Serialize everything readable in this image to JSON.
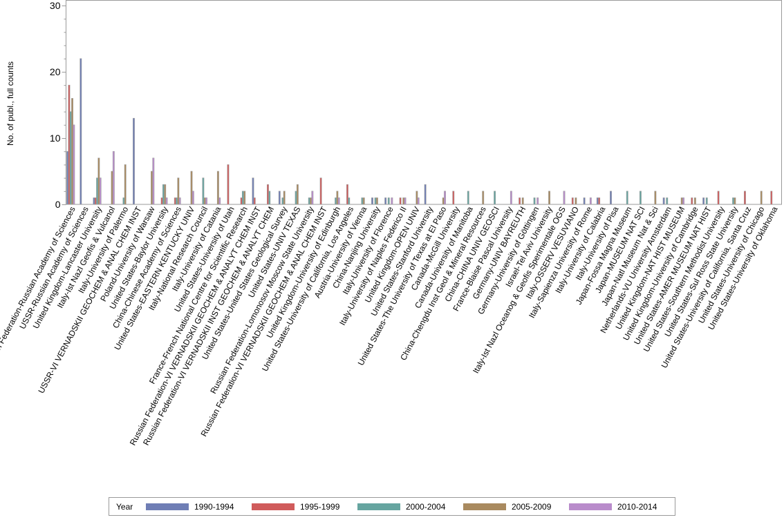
{
  "chart_data": {
    "type": "bar",
    "ylabel": "No. of publ., full counts",
    "xlabel": "",
    "ylim": [
      0,
      30
    ],
    "yticks": [
      0,
      10,
      20,
      30
    ],
    "legend_title": "Year",
    "legend_placement": "bottom",
    "series": [
      {
        "name": "1990-1994",
        "color": "#6f7eb5"
      },
      {
        "name": "1995-1999",
        "color": "#d05b5b"
      },
      {
        "name": "2000-2004",
        "color": "#66a5a0"
      },
      {
        "name": "2005-2009",
        "color": "#a98a5f"
      },
      {
        "name": "2010-2014",
        "color": "#b98ccb"
      }
    ],
    "categories": [
      "Russian Federation-Russian Academy of Sciences",
      "USSR-Russian Academy of Sciences",
      "United Kingdom-Lancaster University",
      "Italy-Ist Nazl Geofis & Vulcanol",
      "Italy-University of Palermo",
      "USSR-VI VERNADSKII GEOCHEM & ANAL CHEM INST",
      "Poland-University of Warsaw",
      "United States-Baylor University",
      "China-Chinese Academy of Sciences",
      "United States-EASTERN KENTUCKY UNIV",
      "Italy-National Research Council",
      "Italy-University of Catania",
      "United States-University of Utah",
      "France-French National Centre for Scientific Research",
      "Russian Federation-VI VERNADSKII GEOCHEM & ANALYT CHEM INST",
      "Russian Federation-VI VERNADSKII INST GEOCHEM & ANALYT CHEM",
      "United States-United States Geological Survey",
      "United States-UNIV TEXAS",
      "Russian Federation-Lomonosov Moscow State University",
      "Russian Federation-VI VERNADSKII GEOCHEM & ANAL CHEM INST",
      "United Kingdom-University of Edinburgh",
      "United States-University of California, Los Angeles",
      "Austria-University of Vienna",
      "China-Nanjing University",
      "Italy-University of Florence",
      "Italy-University of Naples Federico II",
      "United Kingdom-OPEN UNIV",
      "United States-Stanford University",
      "United States-The University of Texas at El Paso",
      "Canada-McGill University",
      "Canada-University of Manitoba",
      "China-Chengdu Inst Geol & Mineral Resources",
      "China-CHINA UNIV GEOSCI",
      "France-Blaise Pascal University",
      "Germany-UNIV BAYREUTH",
      "Germany-University of Göttingen",
      "Israel-Tel Aviv University",
      "Italy-Ist Nazl Oceanog & Geofis Sperimentale OGS",
      "Italy-OSSERV VESUVIANO",
      "Italy-Sapienza University of Rome",
      "Italy-University of Calabria",
      "Italy-University of Pisa",
      "Japan-Fossa Magna Museum",
      "Japan-MUSEUM NAT SCI",
      "Japan-Natl Museum Nat & Sci",
      "Netherlands-VU University Amsterdam",
      "United Kingdom-NAT HIST MUSEUM",
      "United Kingdom-University of Cambridge",
      "United States-AMER MUSEUM NAT HIST",
      "United States-Southern Methodist University",
      "United States-Sul Ross State University",
      "United States-University of California, Santa Cruz",
      "United States-University of Chicago",
      "United States-University of Oklahoma"
    ],
    "values": [
      [
        8,
        18,
        14,
        16,
        12
      ],
      [
        22,
        0,
        0,
        0,
        0
      ],
      [
        1,
        1,
        4,
        7,
        4
      ],
      [
        0,
        0,
        0,
        5,
        8
      ],
      [
        0,
        0,
        1,
        6,
        0
      ],
      [
        13,
        0,
        0,
        0,
        0
      ],
      [
        0,
        0,
        0,
        5,
        7
      ],
      [
        0,
        1,
        3,
        3,
        1
      ],
      [
        0,
        1,
        1,
        4,
        1
      ],
      [
        0,
        0,
        0,
        5,
        2
      ],
      [
        0,
        0,
        4,
        1,
        1
      ],
      [
        0,
        0,
        0,
        5,
        1
      ],
      [
        0,
        6,
        0,
        0,
        0
      ],
      [
        0,
        1,
        2,
        2,
        0
      ],
      [
        4,
        1,
        0,
        0,
        0
      ],
      [
        0,
        3,
        2,
        0,
        0
      ],
      [
        2,
        0,
        1,
        2,
        0
      ],
      [
        0,
        0,
        2,
        3,
        0
      ],
      [
        0,
        0,
        1,
        1,
        2
      ],
      [
        0,
        4,
        0,
        0,
        0
      ],
      [
        0,
        0,
        1,
        2,
        1
      ],
      [
        0,
        3,
        1,
        0,
        0
      ],
      [
        0,
        0,
        1,
        1,
        0
      ],
      [
        1,
        0,
        1,
        1,
        0
      ],
      [
        1,
        0,
        1,
        0,
        1
      ],
      [
        0,
        1,
        0,
        1,
        1
      ],
      [
        0,
        0,
        0,
        2,
        1
      ],
      [
        3,
        0,
        0,
        0,
        0
      ],
      [
        0,
        0,
        0,
        1,
        2
      ],
      [
        0,
        2,
        0,
        0,
        0
      ],
      [
        0,
        0,
        2,
        0,
        0
      ],
      [
        0,
        0,
        0,
        2,
        0
      ],
      [
        0,
        0,
        2,
        0,
        0
      ],
      [
        0,
        0,
        0,
        0,
        2
      ],
      [
        0,
        1,
        0,
        1,
        0
      ],
      [
        0,
        0,
        1,
        0,
        1
      ],
      [
        0,
        0,
        0,
        2,
        0
      ],
      [
        0,
        0,
        0,
        0,
        2
      ],
      [
        0,
        1,
        0,
        1,
        0
      ],
      [
        1,
        0,
        0,
        0,
        1
      ],
      [
        1,
        1,
        0,
        0,
        0
      ],
      [
        2,
        0,
        0,
        0,
        0
      ],
      [
        0,
        0,
        2,
        0,
        0
      ],
      [
        0,
        0,
        2,
        0,
        0
      ],
      [
        0,
        0,
        0,
        2,
        0
      ],
      [
        1,
        0,
        1,
        0,
        0
      ],
      [
        0,
        0,
        0,
        1,
        1
      ],
      [
        0,
        1,
        0,
        1,
        0
      ],
      [
        1,
        0,
        1,
        0,
        0
      ],
      [
        0,
        2,
        0,
        0,
        0
      ],
      [
        0,
        0,
        1,
        1,
        0
      ],
      [
        0,
        2,
        0,
        0,
        0
      ],
      [
        0,
        0,
        0,
        2,
        0
      ],
      [
        0,
        2,
        0,
        0,
        0
      ]
    ]
  }
}
